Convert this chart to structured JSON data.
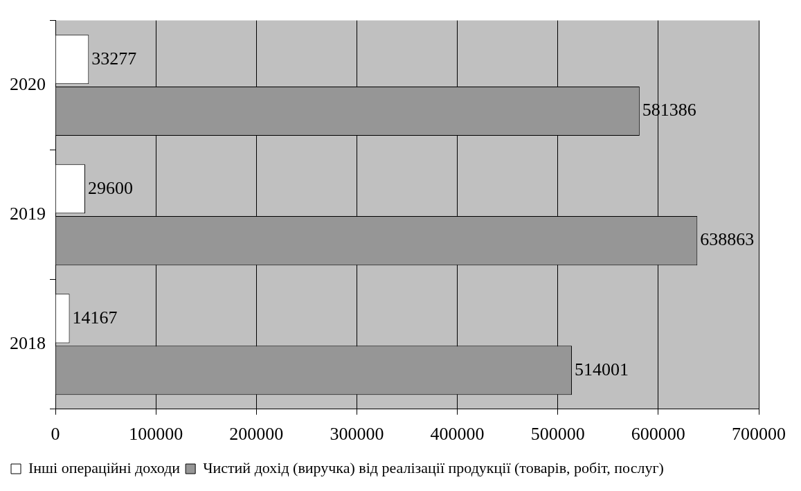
{
  "chart_data": {
    "type": "bar",
    "orientation": "horizontal",
    "categories": [
      "2020",
      "2019",
      "2018"
    ],
    "series": [
      {
        "name": "Інші операційні доходи",
        "color": "#ffffff",
        "values": [
          33277,
          29600,
          14167
        ]
      },
      {
        "name": "Чистий дохід (виручка) від реалізації продукції (товарів, робіт, послуг)",
        "color": "#969696",
        "values": [
          581386,
          638863,
          514001
        ]
      }
    ],
    "xlim": [
      0,
      700000
    ],
    "xticks": [
      0,
      100000,
      200000,
      300000,
      400000,
      500000,
      600000,
      700000
    ],
    "grid": "x",
    "legend": "bottom",
    "data_labels": true
  }
}
